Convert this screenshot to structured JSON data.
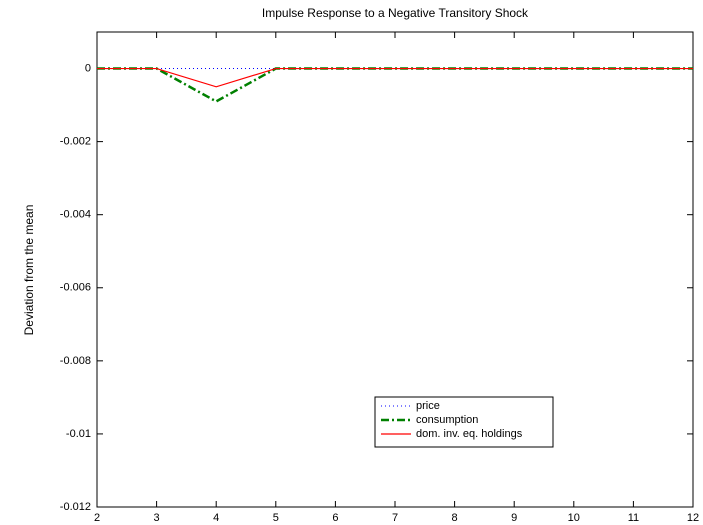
{
  "chart_data": {
    "type": "line",
    "title": "Impulse Response to a Negative Transitory Shock",
    "ylabel": "Deviation from the mean",
    "x": [
      2,
      3,
      4,
      5,
      6,
      7,
      8,
      9,
      10,
      11,
      12
    ],
    "series": [
      {
        "name": "price",
        "color": "#0000ff",
        "style": "dotted",
        "values": [
          0,
          0,
          0,
          0,
          0,
          0,
          0,
          0,
          0,
          0,
          0
        ]
      },
      {
        "name": "consumption",
        "color": "#008000",
        "style": "dashdot",
        "values": [
          0,
          0,
          -0.0009,
          0,
          0,
          0,
          0,
          0,
          0,
          0,
          0
        ]
      },
      {
        "name": "dom. inv. eq. holdings",
        "color": "#ff0000",
        "style": "solid",
        "values": [
          0,
          0,
          -0.0005,
          0,
          0,
          0,
          0,
          0,
          0,
          0,
          0
        ]
      }
    ],
    "xlim": [
      2,
      12
    ],
    "xticks": [
      2,
      3,
      4,
      5,
      6,
      7,
      8,
      9,
      10,
      11,
      12
    ],
    "ylim": [
      -0.012,
      0.001
    ],
    "yticks": [
      0,
      -0.002,
      -0.004,
      -0.006,
      -0.008,
      -0.01,
      -0.012
    ],
    "grid": false
  }
}
